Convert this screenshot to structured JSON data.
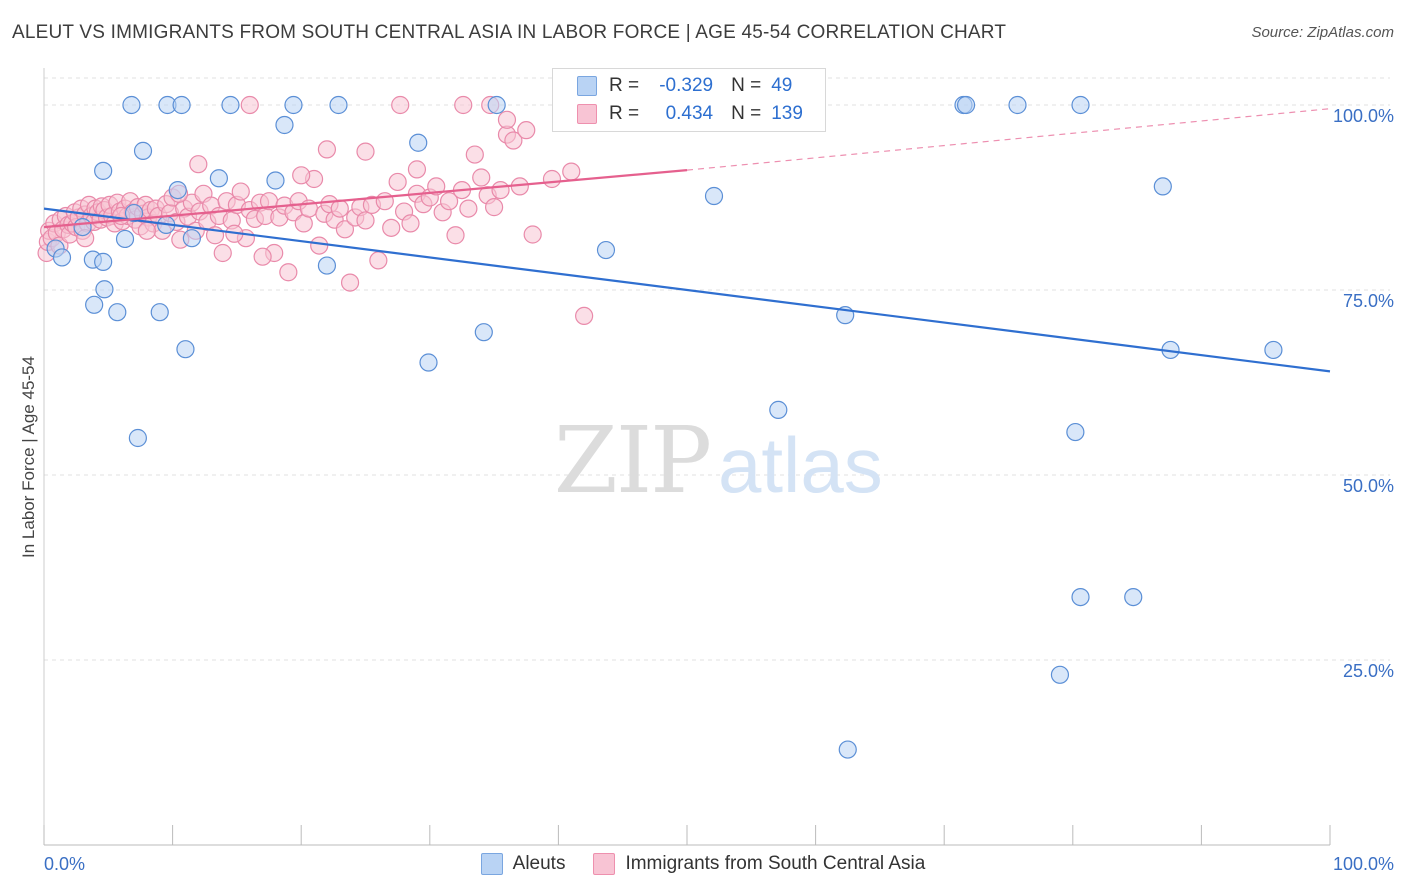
{
  "title": "ALEUT VS IMMIGRANTS FROM SOUTH CENTRAL ASIA IN LABOR FORCE | AGE 45-54 CORRELATION CHART",
  "source": "Source: ZipAtlas.com",
  "watermark": {
    "zip": "ZIP",
    "atlas": "atlas"
  },
  "stats": [
    {
      "r_label": "R =",
      "r_value": "-0.329",
      "n_label": "N =",
      "n_value": "49",
      "swatch": "blue"
    },
    {
      "r_label": "R =",
      "r_value": "0.434",
      "n_label": "N =",
      "n_value": "139",
      "swatch": "pink"
    }
  ],
  "legend": [
    {
      "label": "Aleuts",
      "swatch": "blue"
    },
    {
      "label": "Immigrants from South Central Asia",
      "swatch": "pink"
    }
  ],
  "colors": {
    "blue_fill": "#b9d3f4",
    "blue_stroke": "#5b8fd6",
    "blue_line": "#2f6fd0",
    "pink_fill": "#f8c4d4",
    "pink_stroke": "#e98aaa",
    "pink_line": "#e5608e",
    "grid": "#e2e2e2",
    "tick_label": "#3a6fc4"
  },
  "chart_data": {
    "type": "scatter",
    "xlabel": "",
    "ylabel": "In Labor Force | Age 45-54",
    "xlim": [
      0,
      100
    ],
    "ylim": [
      0,
      105
    ],
    "x_tick_labels": [
      "0.0%",
      "100.0%"
    ],
    "y_ticks": [
      25,
      50,
      75,
      100
    ],
    "y_tick_labels": [
      "25.0%",
      "50.0%",
      "75.0%",
      "100.0%"
    ],
    "grid": true,
    "legend_position": "bottom",
    "series": [
      {
        "name": "Aleuts",
        "color": "blue",
        "trend": {
          "x": [
            0,
            100
          ],
          "y": [
            86.0,
            64.0
          ],
          "style": "solid"
        },
        "points": [
          [
            0.9,
            80.6
          ],
          [
            1.4,
            79.4
          ],
          [
            3.8,
            79.1
          ],
          [
            3.9,
            73.0
          ],
          [
            4.6,
            78.8
          ],
          [
            4.6,
            91.1
          ],
          [
            4.7,
            75.1
          ],
          [
            5.7,
            72.0
          ],
          [
            6.3,
            81.9
          ],
          [
            6.8,
            100.0
          ],
          [
            7.3,
            55.0
          ],
          [
            7.7,
            93.8
          ],
          [
            9.0,
            72.0
          ],
          [
            9.6,
            100.0
          ],
          [
            10.7,
            100.0
          ],
          [
            11.0,
            67.0
          ],
          [
            11.5,
            82.0
          ],
          [
            13.6,
            90.1
          ],
          [
            14.5,
            100.0
          ],
          [
            18.7,
            97.3
          ],
          [
            19.4,
            100.0
          ],
          [
            22.0,
            78.3
          ],
          [
            22.9,
            100.0
          ],
          [
            29.1,
            94.9
          ],
          [
            29.9,
            65.2
          ],
          [
            34.2,
            69.3
          ],
          [
            35.2,
            100.0
          ],
          [
            43.7,
            80.4
          ],
          [
            52.1,
            87.7
          ],
          [
            55.8,
            100.0
          ],
          [
            57.1,
            58.8
          ],
          [
            62.3,
            71.6
          ],
          [
            62.5,
            12.9
          ],
          [
            71.5,
            100.0
          ],
          [
            71.7,
            100.0
          ],
          [
            75.7,
            100.0
          ],
          [
            79.0,
            23.0
          ],
          [
            80.6,
            100.0
          ],
          [
            80.6,
            33.5
          ],
          [
            80.2,
            55.8
          ],
          [
            84.7,
            33.5
          ],
          [
            87.0,
            89.0
          ],
          [
            87.6,
            66.9
          ],
          [
            95.6,
            66.9
          ],
          [
            10.4,
            88.5
          ],
          [
            9.5,
            83.8
          ],
          [
            18.0,
            89.8
          ],
          [
            3.0,
            83.5
          ],
          [
            7.0,
            85.4
          ]
        ]
      },
      {
        "name": "Immigrants from South Central Asia",
        "color": "pink",
        "trend": {
          "x": [
            0,
            50
          ],
          "y": [
            83.5,
            91.2
          ],
          "style": "solid",
          "extension": {
            "x": [
              50,
              100
            ],
            "y": [
              91.2,
              99.5
            ],
            "style": "dashed"
          }
        },
        "points": [
          [
            0.2,
            80.0
          ],
          [
            0.3,
            81.5
          ],
          [
            0.4,
            83.0
          ],
          [
            0.6,
            82.0
          ],
          [
            0.8,
            84.0
          ],
          [
            1.0,
            82.7
          ],
          [
            1.2,
            81.0
          ],
          [
            1.3,
            84.5
          ],
          [
            1.5,
            83.2
          ],
          [
            1.7,
            85.0
          ],
          [
            1.9,
            83.8
          ],
          [
            2.0,
            82.5
          ],
          [
            2.2,
            84.0
          ],
          [
            2.4,
            85.5
          ],
          [
            2.5,
            83.5
          ],
          [
            2.7,
            84.8
          ],
          [
            2.9,
            86.0
          ],
          [
            3.0,
            83.0
          ],
          [
            3.2,
            85.2
          ],
          [
            3.4,
            84.0
          ],
          [
            3.5,
            86.5
          ],
          [
            3.7,
            85.0
          ],
          [
            3.9,
            84.2
          ],
          [
            4.0,
            86.0
          ],
          [
            4.2,
            85.5
          ],
          [
            4.4,
            84.5
          ],
          [
            4.5,
            86.3
          ],
          [
            4.7,
            85.8
          ],
          [
            4.9,
            84.8
          ],
          [
            5.1,
            86.5
          ],
          [
            5.3,
            85.0
          ],
          [
            5.5,
            84.0
          ],
          [
            5.7,
            86.8
          ],
          [
            5.9,
            85.6
          ],
          [
            6.1,
            84.3
          ],
          [
            6.3,
            86.0
          ],
          [
            6.5,
            85.0
          ],
          [
            6.7,
            87.0
          ],
          [
            6.9,
            85.5
          ],
          [
            7.1,
            84.5
          ],
          [
            7.3,
            86.2
          ],
          [
            7.5,
            83.6
          ],
          [
            7.7,
            85.3
          ],
          [
            7.9,
            86.5
          ],
          [
            8.1,
            84.8
          ],
          [
            8.3,
            85.8
          ],
          [
            8.5,
            84.0
          ],
          [
            8.7,
            86.0
          ],
          [
            8.9,
            85.0
          ],
          [
            9.2,
            83.0
          ],
          [
            9.5,
            86.6
          ],
          [
            9.8,
            85.4
          ],
          [
            10.0,
            87.5
          ],
          [
            10.3,
            84.2
          ],
          [
            10.6,
            81.8
          ],
          [
            10.9,
            86.0
          ],
          [
            11.2,
            84.9
          ],
          [
            11.5,
            86.8
          ],
          [
            11.8,
            83.0
          ],
          [
            12.1,
            85.6
          ],
          [
            12.4,
            88.0
          ],
          [
            12.7,
            84.2
          ],
          [
            13.0,
            86.4
          ],
          [
            13.3,
            82.4
          ],
          [
            13.6,
            85.0
          ],
          [
            13.9,
            80.0
          ],
          [
            14.2,
            87.0
          ],
          [
            14.6,
            84.4
          ],
          [
            15.0,
            86.5
          ],
          [
            15.3,
            88.3
          ],
          [
            15.7,
            82.0
          ],
          [
            16.0,
            85.8
          ],
          [
            16.4,
            84.6
          ],
          [
            16.8,
            86.8
          ],
          [
            17.2,
            85.0
          ],
          [
            17.5,
            87.0
          ],
          [
            17.9,
            80.0
          ],
          [
            18.3,
            84.8
          ],
          [
            18.7,
            86.4
          ],
          [
            19.0,
            77.4
          ],
          [
            19.4,
            85.5
          ],
          [
            19.8,
            87.0
          ],
          [
            20.2,
            84.0
          ],
          [
            20.6,
            86.0
          ],
          [
            21.0,
            90.0
          ],
          [
            21.4,
            81.0
          ],
          [
            21.8,
            85.3
          ],
          [
            22.2,
            86.6
          ],
          [
            22.6,
            84.5
          ],
          [
            23.0,
            86.0
          ],
          [
            23.4,
            83.2
          ],
          [
            23.8,
            76.0
          ],
          [
            24.2,
            84.8
          ],
          [
            24.6,
            86.2
          ],
          [
            25.0,
            84.4
          ],
          [
            25.5,
            86.5
          ],
          [
            26.0,
            79.0
          ],
          [
            26.5,
            87.0
          ],
          [
            27.0,
            83.4
          ],
          [
            27.5,
            89.6
          ],
          [
            28.0,
            85.6
          ],
          [
            28.5,
            84.0
          ],
          [
            29.0,
            88.0
          ],
          [
            29.5,
            86.6
          ],
          [
            30.0,
            87.5
          ],
          [
            30.5,
            89.0
          ],
          [
            31.0,
            85.5
          ],
          [
            31.5,
            87.0
          ],
          [
            32.0,
            82.4
          ],
          [
            32.5,
            88.5
          ],
          [
            33.0,
            86.0
          ],
          [
            33.5,
            93.3
          ],
          [
            34.0,
            90.2
          ],
          [
            34.5,
            87.8
          ],
          [
            35.0,
            86.2
          ],
          [
            35.5,
            88.5
          ],
          [
            36.0,
            96.0
          ],
          [
            36.5,
            95.2
          ],
          [
            37.0,
            89.0
          ],
          [
            37.5,
            96.6
          ],
          [
            38.0,
            82.5
          ],
          [
            39.5,
            90.0
          ],
          [
            41.0,
            91.0
          ],
          [
            42.0,
            71.5
          ],
          [
            27.7,
            100.0
          ],
          [
            32.6,
            100.0
          ],
          [
            34.7,
            100.0
          ],
          [
            16.0,
            100.0
          ],
          [
            36.0,
            98.0
          ],
          [
            25.0,
            93.7
          ],
          [
            29.0,
            91.3
          ],
          [
            22.0,
            94.0
          ],
          [
            10.5,
            88.0
          ],
          [
            12.0,
            92.0
          ],
          [
            8.0,
            83.0
          ],
          [
            20.0,
            90.5
          ],
          [
            3.2,
            82.0
          ],
          [
            6.0,
            85.0
          ],
          [
            14.8,
            82.6
          ],
          [
            17.0,
            79.5
          ]
        ]
      }
    ]
  }
}
